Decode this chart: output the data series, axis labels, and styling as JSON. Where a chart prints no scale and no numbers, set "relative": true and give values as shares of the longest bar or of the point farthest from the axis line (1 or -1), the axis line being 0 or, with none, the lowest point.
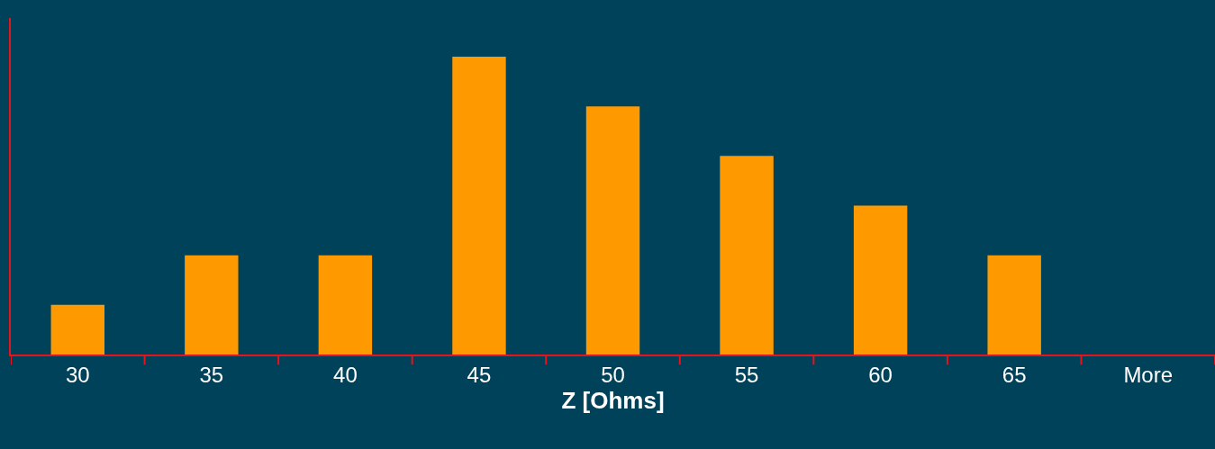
{
  "chart_data": {
    "type": "bar",
    "relative": true,
    "xlabel": "Z [Ohms]",
    "categories": [
      "30",
      "35",
      "40",
      "45",
      "50",
      "55",
      "60",
      "65",
      "More"
    ],
    "values": [
      0.167,
      0.333,
      0.333,
      1,
      0.833,
      0.667,
      0.5,
      0.333,
      0
    ],
    "color": "#ff9900",
    "grid": false,
    "legend": false
  }
}
